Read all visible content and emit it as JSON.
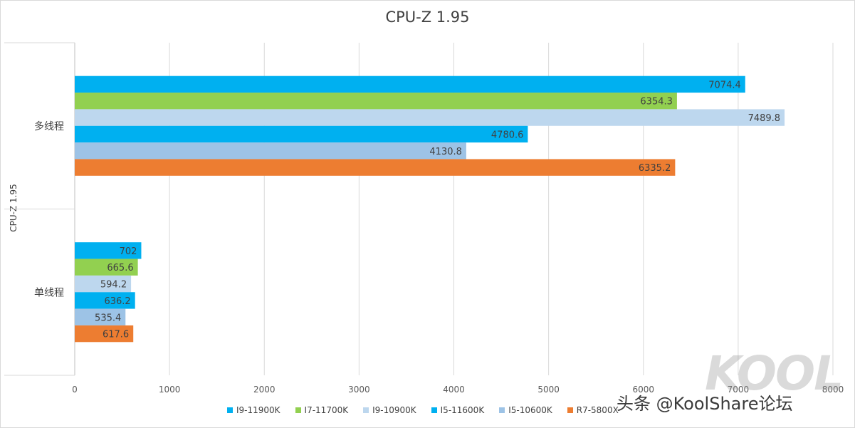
{
  "chart_data": {
    "type": "bar",
    "orientation": "horizontal",
    "title": "CPU-Z 1.95",
    "ylabel": "CPU-Z 1.95",
    "xlabel": "",
    "categories": [
      "多线程",
      "单线程"
    ],
    "xlim": [
      0,
      8000
    ],
    "xticks": [
      0,
      1000,
      2000,
      3000,
      4000,
      5000,
      6000,
      7000,
      8000
    ],
    "grid": true,
    "legend_position": "bottom",
    "series": [
      {
        "name": "I9-11900K",
        "color": "#00b0f0",
        "values": [
          7074.4,
          702
        ]
      },
      {
        "name": "I7-11700K",
        "color": "#92d050",
        "values": [
          6354.3,
          665.6
        ]
      },
      {
        "name": "I9-10900K",
        "color": "#bdd7ee",
        "values": [
          7489.8,
          594.2
        ]
      },
      {
        "name": "I5-11600K",
        "color": "#00b0f0",
        "values": [
          4780.6,
          636.2
        ]
      },
      {
        "name": "I5-10600K",
        "color": "#9dc3e6",
        "values": [
          4130.8,
          535.4
        ]
      },
      {
        "name": "R7-5800X",
        "color": "#ed7d31",
        "values": [
          6335.2,
          617.6
        ]
      }
    ],
    "data_labels": [
      [
        "7074.4",
        "6354.3",
        "7489.8",
        "4780.6",
        "4130.8",
        "6335.2"
      ],
      [
        "702",
        "665.6",
        "594.2",
        "636.2",
        "535.4",
        "617.6"
      ]
    ]
  },
  "watermark": {
    "logo": "KOOL",
    "text": "头条 @KoolShare论坛"
  }
}
